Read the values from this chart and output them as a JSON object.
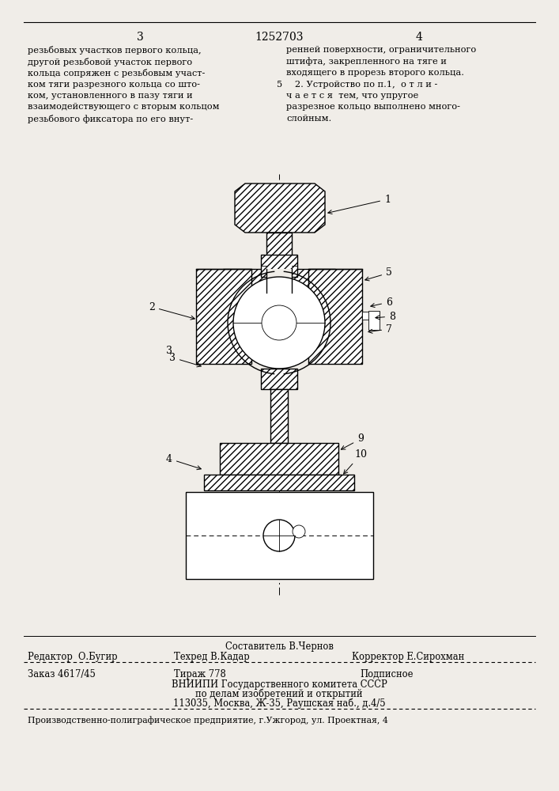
{
  "bg_color": "#f0ede8",
  "page_number_left": "3",
  "page_title_center": "1252703",
  "page_number_right": "4",
  "col_left_text": [
    "резьбовых участков первого кольца,",
    "другой резьбовой участок первого",
    "кольца сопряжен с резьбовым участ-",
    "ком тяги разрезного кольца со што-",
    "ком, установленного в пазу тяги и",
    "взаимодействующего с вторым кольцом",
    "резьбового фиксатора по его внут-"
  ],
  "col_right_text": [
    "ренней поверхности, ограничительного",
    "штифта, закрепленного на тяге и",
    "входящего в прорезь второго кольца.",
    "   2. Устройство по п.1,  о т л и -",
    "ч а е т с я  тем, что упругое",
    "разрезное кольцо выполнено много-",
    "слойным."
  ],
  "footer_author": "Составитель В.Чернов",
  "footer_editor": "Редактор  О.Бугир",
  "footer_tech": "Техред В.Кадар",
  "footer_corrector": "Корректор Е.Сирохман",
  "footer_order": "Заказ 4617/45",
  "footer_tirazh": "Тираж 778",
  "footer_podpisnoe": "Подписное",
  "footer_org1": "ВНИИПИ Государственного комитета СССР",
  "footer_org2": "по делам изобретений и открытий",
  "footer_addr": "113035, Москва, Ж-35, Раушская наб., д.4/5",
  "footer_bottom": "Производственно-полиграфическое предприятие, г.Ужгород, ул. Проектная, 4"
}
